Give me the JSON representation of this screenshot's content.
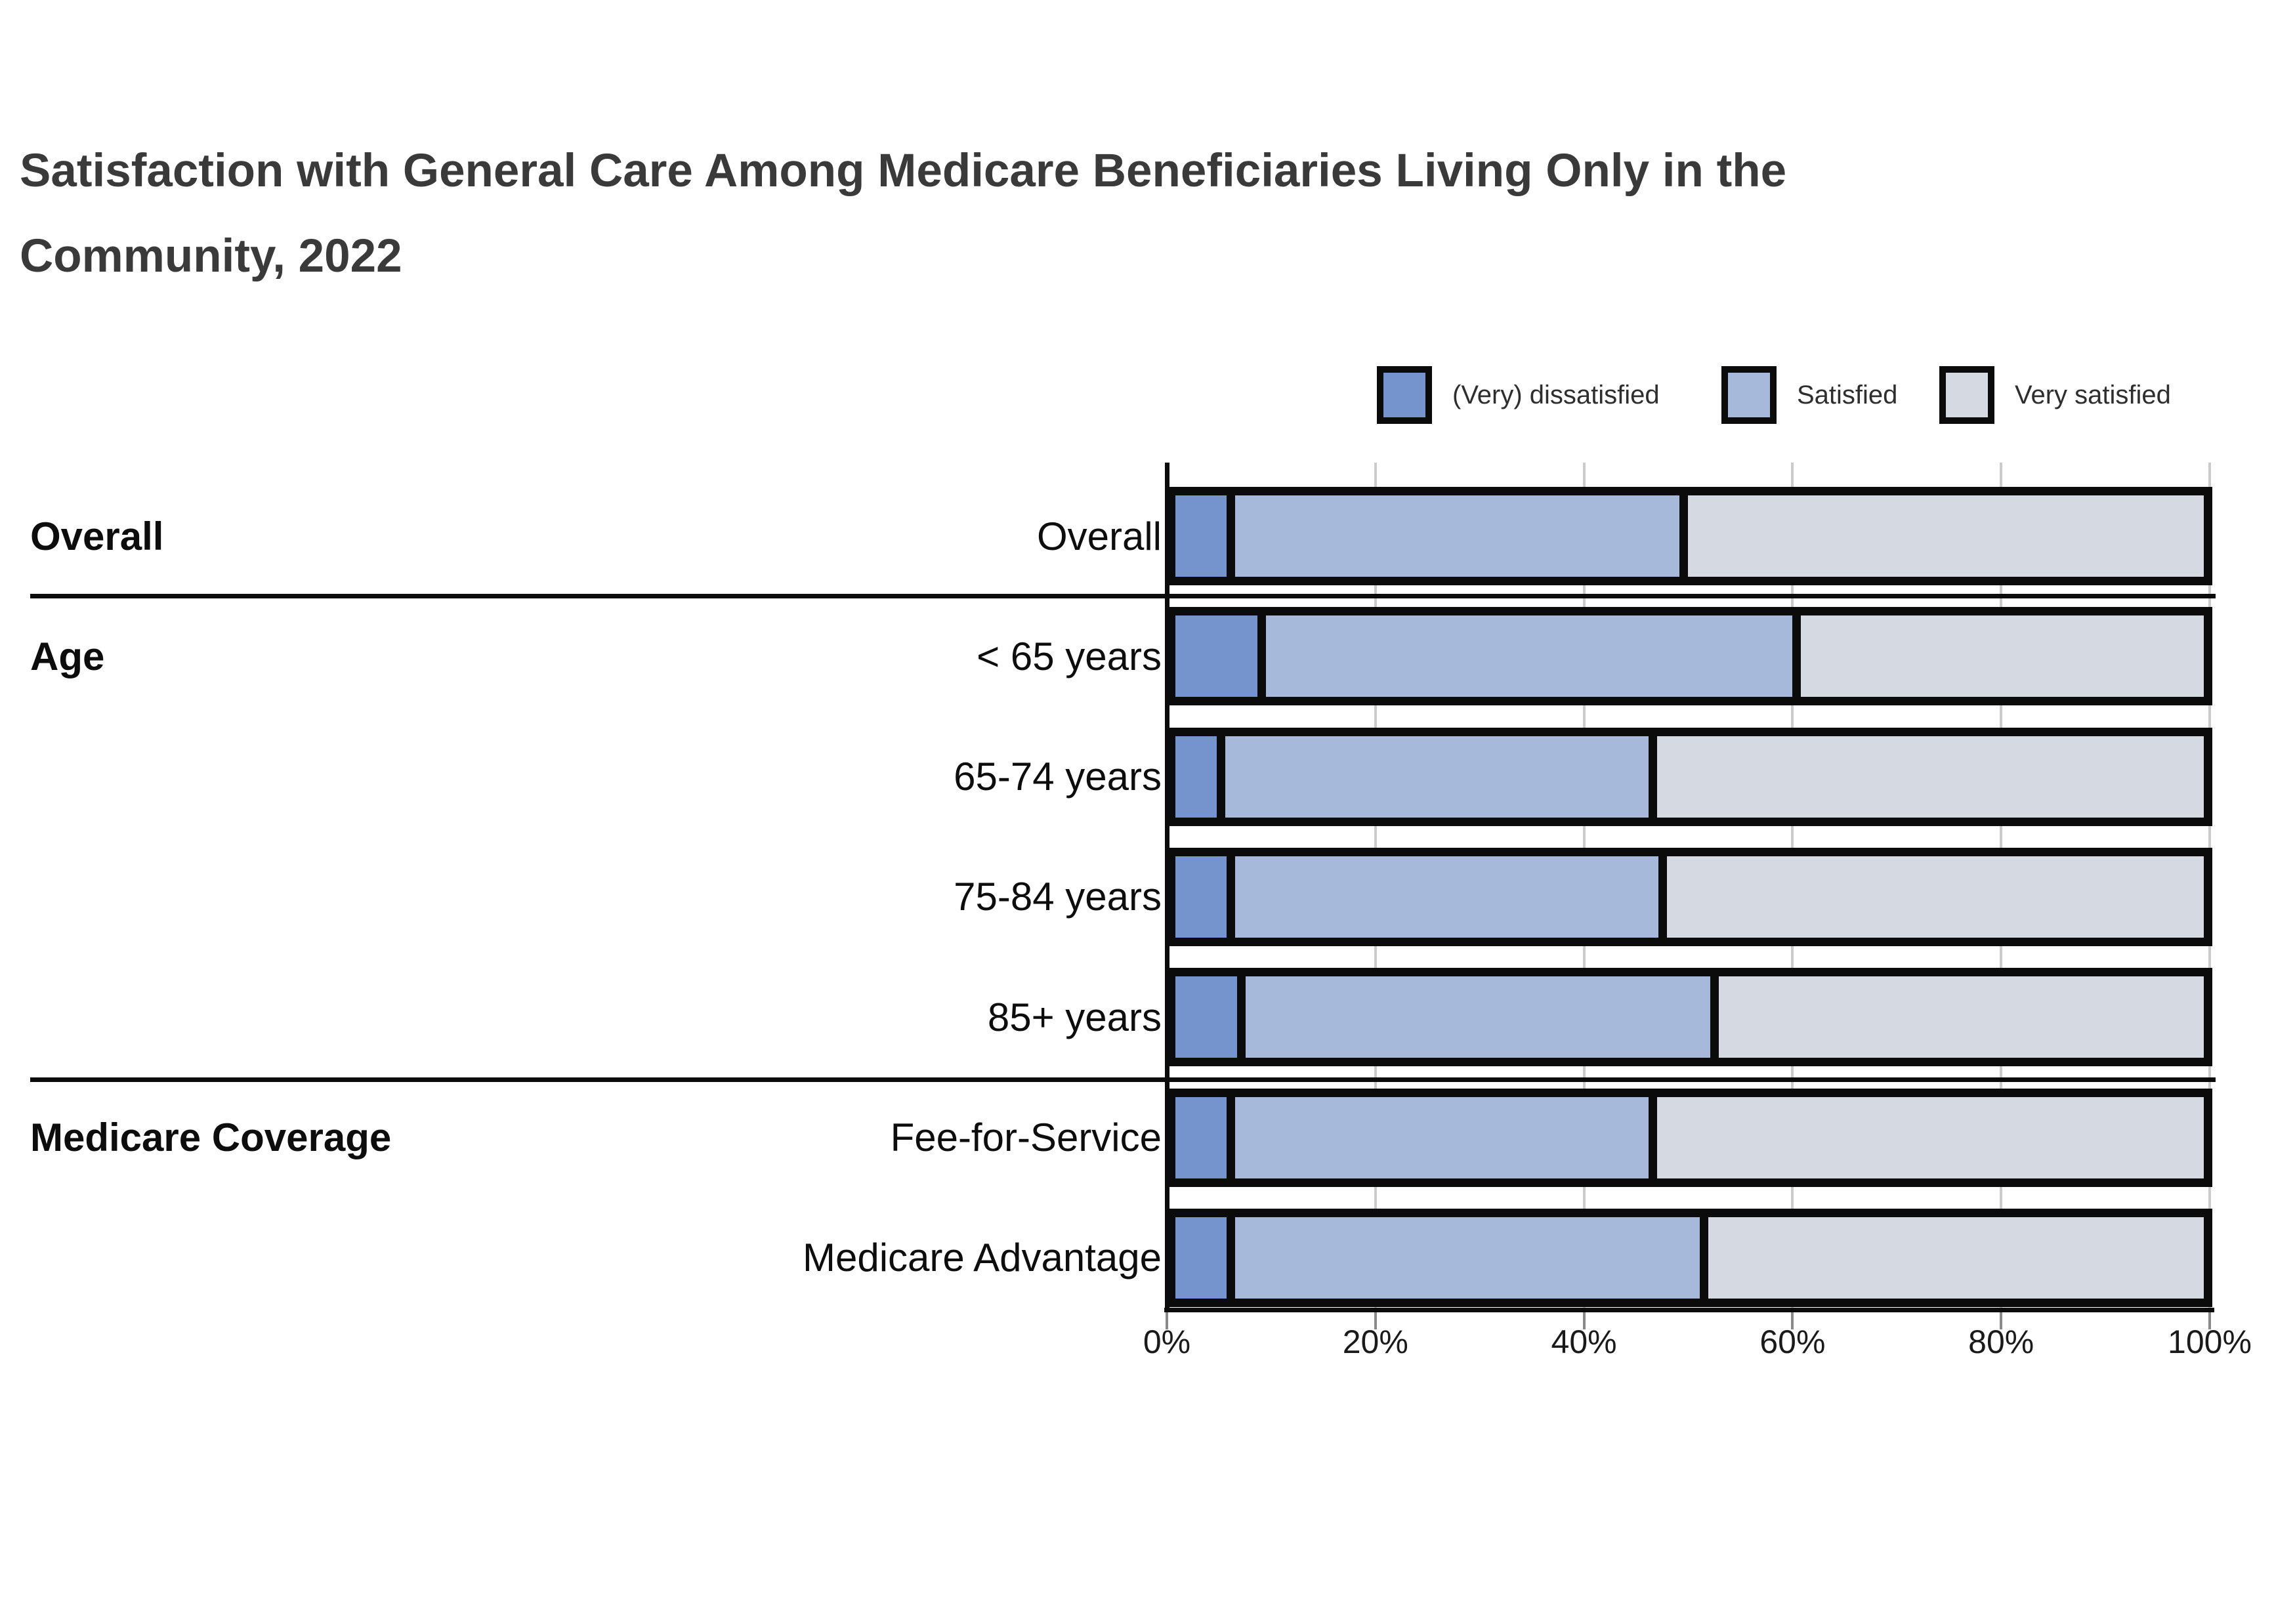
{
  "title": {
    "line1": "Satisfaction with General Care Among Medicare Beneficiaries Living Only in the",
    "line2": "Community, 2022"
  },
  "legend": {
    "items": [
      {
        "label": "(Very) dissatisfied",
        "color": "#7594cd"
      },
      {
        "label": "Satisfied",
        "color": "#a6b9da"
      },
      {
        "label": "Very satisfied",
        "color": "#d5dae2"
      }
    ]
  },
  "chart_data": {
    "type": "bar",
    "variant": "horizontal-stacked",
    "title": "Satisfaction with General Care Among Medicare Beneficiaries Living Only in the Community, 2022",
    "stacked": true,
    "unit": "%",
    "x_axis": {
      "min": 0,
      "max": 100,
      "tick_labels": [
        "0%",
        "20%",
        "40%",
        "60%",
        "80%",
        "100%"
      ],
      "grid": true
    },
    "series_names": [
      "(Very) dissatisfied",
      "Satisfied",
      "Very satisfied"
    ],
    "series_colors": [
      "#7594cd",
      "#a6b9da",
      "#d5dae2"
    ],
    "groups": [
      {
        "group_label": "Overall",
        "rows": [
          {
            "label": "Overall",
            "values": [
              5,
              44,
              51
            ]
          }
        ]
      },
      {
        "group_label": "Age",
        "rows": [
          {
            "label": "< 65 years",
            "values": [
              8,
              52,
              40
            ]
          },
          {
            "label": "65-74 years",
            "values": [
              4,
              42,
              54
            ]
          },
          {
            "label": "75-84 years",
            "values": [
              5,
              42,
              53
            ]
          },
          {
            "label": "85+ years",
            "values": [
              6,
              46,
              48
            ]
          }
        ]
      },
      {
        "group_label": "Medicare Coverage",
        "rows": [
          {
            "label": "Fee-for-Service",
            "values": [
              5,
              41,
              54
            ]
          },
          {
            "label": "Medicare Advantage",
            "values": [
              5,
              46,
              49
            ]
          }
        ]
      }
    ]
  },
  "colors": {
    "axis": "#0b0b0b",
    "gridline": "#cbcbcb",
    "separator": "#0b0b0b",
    "title_text": "#3a3a3a",
    "label_text": "#0d0d0d",
    "background": "#ffffff"
  }
}
